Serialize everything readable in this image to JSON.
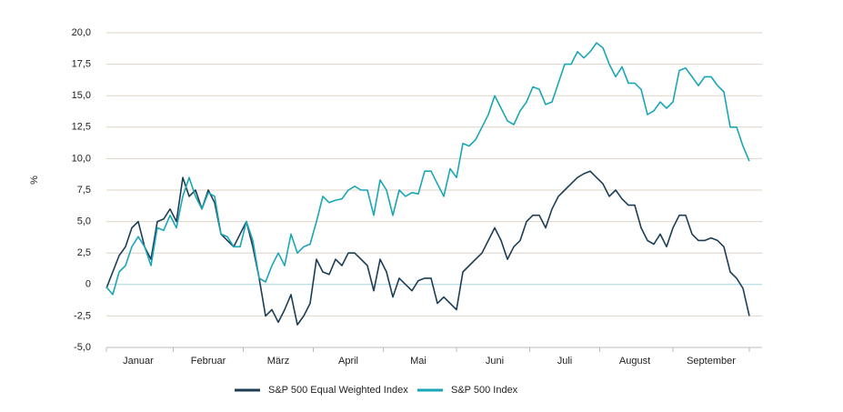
{
  "chart_data": {
    "type": "line",
    "ylabel": "%",
    "categories": [
      null,
      null,
      null,
      null,
      null,
      "Januar",
      null,
      null,
      null,
      null,
      null,
      null,
      null,
      null,
      null,
      null,
      "Februar",
      null,
      null,
      null,
      null,
      null,
      null,
      null,
      null,
      null,
      null,
      "März",
      null,
      null,
      null,
      null,
      null,
      null,
      null,
      null,
      null,
      null,
      "April",
      null,
      null,
      null,
      null,
      null,
      null,
      null,
      null,
      null,
      null,
      "Mai",
      null,
      null,
      null,
      null,
      null,
      null,
      null,
      null,
      null,
      null,
      null,
      "Juni",
      null,
      null,
      null,
      null,
      null,
      null,
      null,
      null,
      null,
      null,
      "Juli",
      null,
      null,
      null,
      null,
      null,
      null,
      null,
      null,
      null,
      null,
      "August",
      null,
      null,
      null,
      null,
      null,
      null,
      null,
      null,
      null,
      null,
      null,
      "September",
      null,
      null,
      null,
      null,
      null,
      null
    ],
    "series": [
      {
        "name": "S&P 500 Equal Weighted Index",
        "color": "#1c3e55",
        "values": [
          -0.3,
          1.0,
          2.3,
          3.0,
          4.5,
          5.0,
          3.0,
          2.0,
          5.0,
          5.2,
          6.0,
          5.0,
          8.5,
          7.0,
          7.5,
          6.0,
          7.5,
          6.5,
          4.0,
          3.5,
          3.0,
          4.0,
          5.0,
          3.0,
          0.5,
          -2.5,
          -2.0,
          -3.0,
          -2.0,
          -0.8,
          -3.2,
          -2.5,
          -1.5,
          2.0,
          1.0,
          0.8,
          2.0,
          1.5,
          2.5,
          2.5,
          2.0,
          1.5,
          -0.5,
          2.0,
          1.0,
          -1.0,
          0.5,
          0.0,
          -0.5,
          0.3,
          0.5,
          0.5,
          -1.5,
          -1.0,
          -1.5,
          -2.0,
          1.0,
          1.5,
          2.0,
          2.5,
          3.5,
          4.5,
          3.5,
          2.0,
          3.0,
          3.5,
          5.0,
          5.5,
          5.5,
          4.5,
          6.0,
          7.0,
          7.5,
          8.0,
          8.5,
          8.8,
          9.0,
          8.5,
          8.0,
          7.0,
          7.5,
          6.8,
          6.3,
          6.3,
          4.5,
          3.5,
          3.2,
          4.0,
          3.0,
          4.5,
          5.5,
          5.5,
          4.0,
          3.5,
          3.5,
          3.7,
          3.5,
          3.0,
          1.0,
          0.5,
          -0.3,
          -2.5
        ]
      },
      {
        "name": "S&P 500 Index",
        "color": "#1aa6b7",
        "values": [
          -0.2,
          -0.8,
          1.0,
          1.5,
          3.0,
          3.8,
          3.0,
          1.5,
          4.5,
          4.3,
          5.5,
          4.5,
          7.0,
          8.5,
          7.0,
          6.0,
          7.3,
          7.0,
          4.0,
          3.8,
          3.0,
          3.0,
          5.0,
          3.5,
          0.5,
          0.2,
          1.5,
          2.5,
          1.5,
          4.0,
          2.5,
          3.0,
          3.2,
          5.0,
          7.0,
          6.5,
          6.7,
          6.8,
          7.5,
          7.8,
          7.5,
          7.5,
          5.5,
          8.3,
          7.5,
          5.5,
          7.5,
          7.0,
          7.3,
          7.2,
          9.0,
          9.0,
          8.0,
          7.0,
          9.2,
          8.5,
          11.2,
          11.0,
          11.5,
          12.5,
          13.5,
          15.0,
          14.0,
          13.0,
          12.7,
          13.8,
          14.5,
          15.7,
          15.5,
          14.3,
          14.5,
          16.0,
          17.5,
          17.5,
          18.5,
          18.0,
          18.5,
          19.2,
          18.8,
          17.5,
          16.5,
          17.3,
          16.0,
          16.0,
          15.5,
          13.5,
          13.8,
          14.5,
          14.0,
          14.5,
          17.0,
          17.2,
          16.5,
          15.8,
          16.5,
          16.5,
          15.8,
          15.3,
          12.5,
          12.5,
          11.0,
          9.8
        ]
      }
    ],
    "ylim": [
      -5,
      20
    ],
    "yticks": [
      {
        "value": -5,
        "label": "-5,0"
      },
      {
        "value": -2.5,
        "label": "-2,5"
      },
      0,
      {
        "value": 2.5,
        "label": "2,5"
      },
      {
        "value": 5,
        "label": "5,0"
      },
      {
        "value": 7.5,
        "label": "7,5"
      },
      {
        "value": 10,
        "label": "10,0"
      },
      {
        "value": 12.5,
        "label": "12,5"
      },
      {
        "value": 15,
        "label": "15,0"
      },
      {
        "value": 17.5,
        "label": "17,5"
      },
      {
        "value": 20,
        "label": "20,0"
      }
    ],
    "grid": true,
    "legend": "bottom"
  }
}
